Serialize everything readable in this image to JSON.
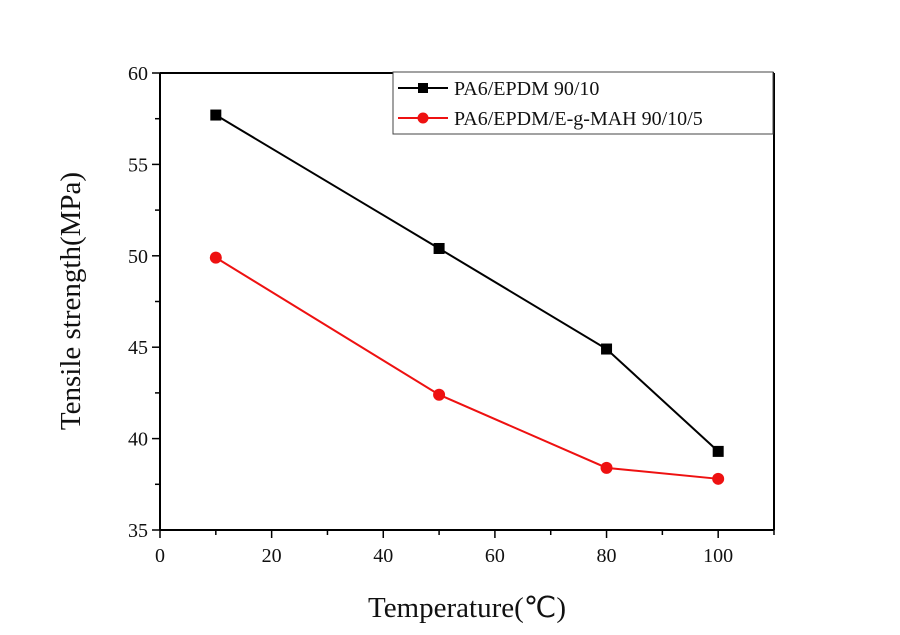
{
  "chart_data": {
    "type": "line",
    "title": "",
    "xlabel": "Temperature(℃)",
    "ylabel": "Tensile strength(MPa)",
    "xlim": [
      0,
      110
    ],
    "ylim": [
      35,
      60
    ],
    "x_ticks": [
      0,
      20,
      40,
      60,
      80,
      100
    ],
    "x_tick_labels": [
      "0",
      "20",
      "40",
      "60",
      "80",
      "100"
    ],
    "y_ticks": [
      35,
      40,
      45,
      50,
      55,
      60
    ],
    "y_tick_labels": [
      "35",
      "40",
      "45",
      "50",
      "55",
      "60"
    ],
    "grid": false,
    "legend_position": "top-right",
    "x": [
      10,
      50,
      80,
      100
    ],
    "series": [
      {
        "name": "PA6/EPDM 90/10",
        "color": "#000000",
        "marker": "square",
        "values": [
          57.7,
          50.4,
          44.9,
          39.3
        ]
      },
      {
        "name": "PA6/EPDM/E-g-MAH 90/10/5",
        "color": "#ee1111",
        "marker": "circle",
        "values": [
          49.9,
          42.4,
          38.4,
          37.8
        ]
      }
    ]
  }
}
